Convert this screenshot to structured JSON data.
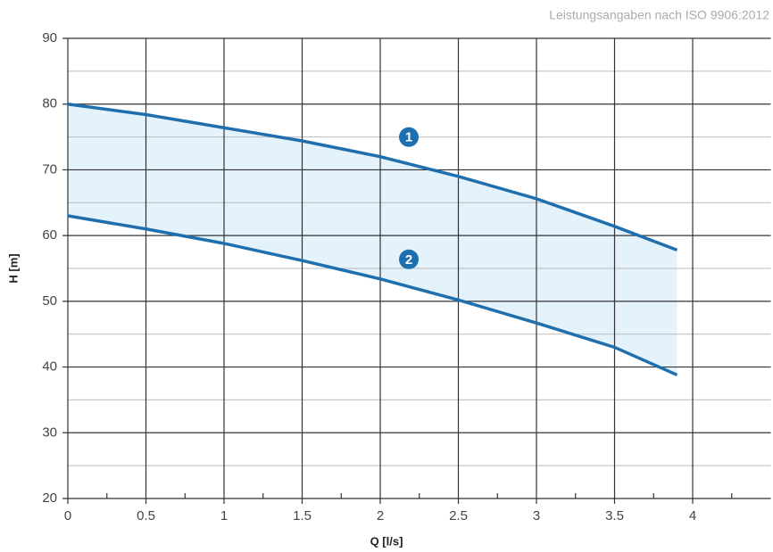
{
  "chart_data": {
    "type": "line",
    "note": "Leistungsangaben nach ISO 9906:2012",
    "x_label": "Q [l/s]",
    "y_label": "H [m]",
    "x": [
      0,
      0.5,
      1,
      1.5,
      2,
      2.5,
      3,
      3.5,
      3.9
    ],
    "series": [
      {
        "name": "1",
        "color": "#1f6fae",
        "values": [
          80,
          78.4,
          76.4,
          74.4,
          72,
          69,
          65.6,
          61.4,
          57.8
        ]
      },
      {
        "name": "2",
        "color": "#1f6fae",
        "values": [
          63,
          61,
          58.8,
          56.2,
          53.4,
          50.2,
          46.7,
          43,
          38.8
        ]
      }
    ],
    "band_color": "#e4f2fb",
    "xlim": [
      0,
      4.5
    ],
    "ylim": [
      20,
      90
    ],
    "xticks": [
      0,
      0.5,
      1,
      1.5,
      2,
      2.5,
      3,
      3.5,
      4
    ],
    "xminorticks": [
      0.25,
      0.75,
      1.25,
      1.75,
      2.25,
      2.75,
      3.25,
      3.75,
      4.25
    ],
    "yticks": [
      20,
      30,
      40,
      50,
      60,
      70,
      80,
      90
    ],
    "yminorticks": [
      25,
      35,
      45,
      55,
      65,
      75,
      85
    ],
    "grid": true
  }
}
